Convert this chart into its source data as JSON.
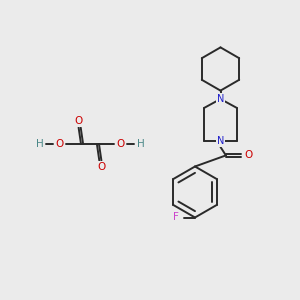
{
  "background_color": "#ebebeb",
  "bond_color": "#2a2a2a",
  "N_color": "#2020cc",
  "O_color": "#cc0000",
  "F_color": "#cc44cc",
  "H_color": "#4a8888",
  "fig_width": 3.0,
  "fig_height": 3.0,
  "dpi": 100,
  "xlim": [
    0,
    10
  ],
  "ylim": [
    0,
    10
  ]
}
